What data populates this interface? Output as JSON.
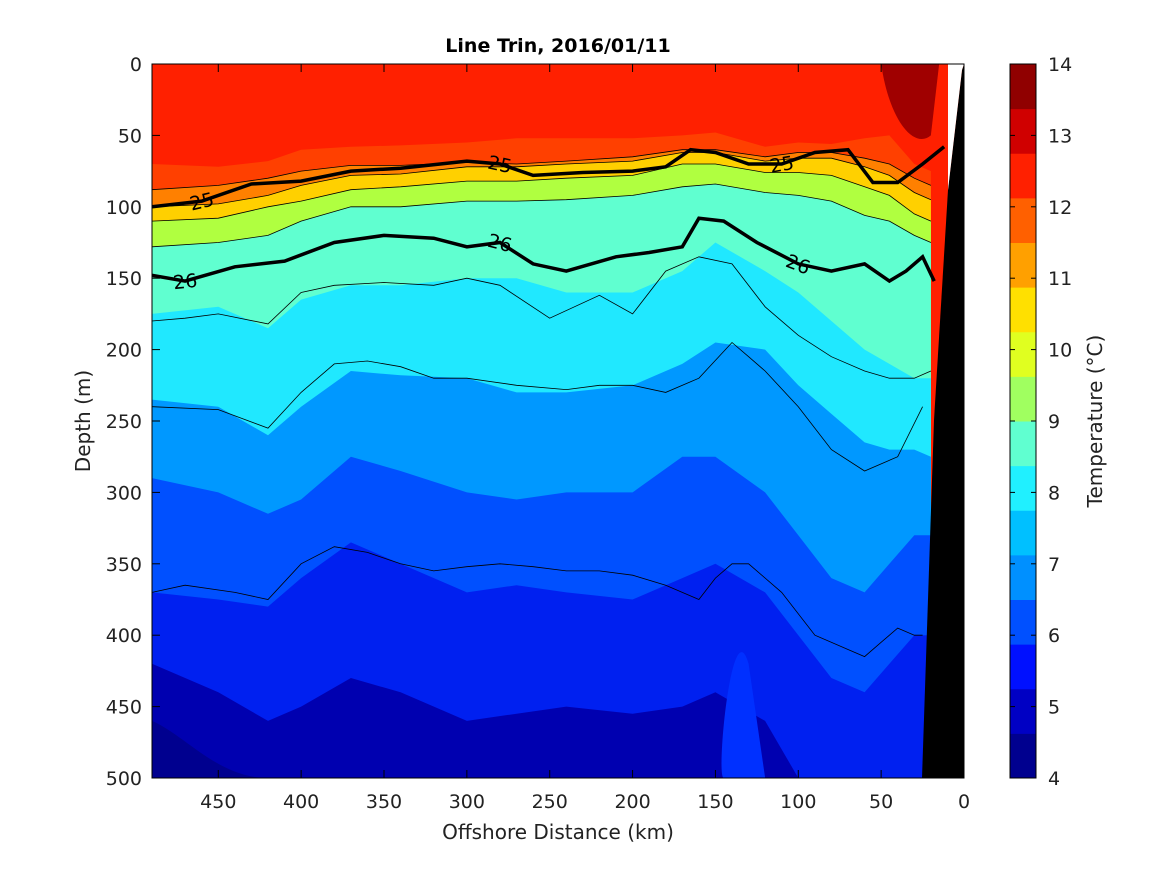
{
  "chart_data": {
    "type": "heatmap",
    "title": "Line Trin, 2016/01/11",
    "xlabel": "Offshore Distance (km)",
    "ylabel": "Depth (m)",
    "colorbar_label": "Temperature (°C)",
    "x_range": [
      490,
      0
    ],
    "y_range": [
      0,
      500
    ],
    "x_ticks": [
      450,
      400,
      350,
      300,
      250,
      200,
      150,
      100,
      50,
      0
    ],
    "y_ticks": [
      0,
      50,
      100,
      150,
      200,
      250,
      300,
      350,
      400,
      450,
      500
    ],
    "colorbar_range": [
      4,
      14
    ],
    "colorbar_ticks": [
      4,
      5,
      6,
      7,
      8,
      9,
      10,
      11,
      12,
      13,
      14
    ],
    "colorbar_levels": [
      "#00008f",
      "#0000c4",
      "#0010ff",
      "#0050ff",
      "#0090ff",
      "#00c0ff",
      "#20f0ff",
      "#60ffd0",
      "#a0ff60",
      "#e0ff20",
      "#ffe000",
      "#ffa000",
      "#ff6000",
      "#ff2000",
      "#d00000",
      "#900000"
    ],
    "isotherm_depths": {
      "x": [
        490,
        450,
        420,
        400,
        370,
        340,
        300,
        270,
        240,
        200,
        170,
        150,
        120,
        100,
        80,
        60,
        45,
        30,
        20
      ],
      "t12p5": [
        70,
        72,
        68,
        60,
        58,
        57,
        55,
        52,
        52,
        52,
        50,
        48,
        58,
        55,
        56,
        52,
        50,
        70,
        75
      ],
      "t12": [
        88,
        85,
        80,
        75,
        71,
        71,
        69,
        70,
        68,
        65,
        60,
        60,
        65,
        62,
        62,
        66,
        70,
        80,
        85
      ],
      "t11": [
        100,
        98,
        92,
        85,
        78,
        77,
        72,
        72,
        70,
        68,
        62,
        62,
        68,
        66,
        66,
        72,
        78,
        90,
        95
      ],
      "t10": [
        110,
        108,
        100,
        96,
        88,
        86,
        82,
        82,
        80,
        78,
        70,
        70,
        76,
        76,
        78,
        86,
        92,
        105,
        110
      ],
      "t9": [
        128,
        125,
        120,
        110,
        100,
        100,
        96,
        96,
        95,
        92,
        86,
        84,
        90,
        92,
        96,
        106,
        110,
        120,
        125
      ],
      "t8": [
        175,
        170,
        185,
        165,
        155,
        155,
        150,
        150,
        160,
        160,
        145,
        125,
        145,
        160,
        180,
        200,
        210,
        220,
        220
      ],
      "t7": [
        235,
        240,
        260,
        240,
        215,
        218,
        220,
        230,
        230,
        225,
        210,
        195,
        200,
        225,
        245,
        265,
        270,
        270,
        275
      ],
      "t6": [
        290,
        300,
        315,
        305,
        275,
        285,
        300,
        305,
        300,
        300,
        275,
        275,
        300,
        330,
        360,
        370,
        350,
        330,
        330
      ],
      "t5": [
        370,
        375,
        380,
        360,
        335,
        350,
        370,
        365,
        370,
        375,
        360,
        350,
        370,
        400,
        430,
        440,
        420,
        400,
        400
      ],
      "t4p5": [
        420,
        440,
        460,
        450,
        430,
        440,
        460,
        455,
        450,
        455,
        450,
        440,
        460,
        500,
        520,
        520,
        520,
        520,
        520
      ]
    },
    "isopycnals": [
      {
        "label": "25",
        "x": [
          490,
          460,
          430,
          400,
          370,
          340,
          300,
          280,
          260,
          230,
          200,
          180,
          165,
          150,
          130,
          110,
          90,
          70,
          55,
          40,
          25,
          12
        ],
        "y": [
          100,
          96,
          84,
          82,
          75,
          73,
          68,
          70,
          78,
          76,
          75,
          72,
          60,
          62,
          70,
          70,
          62,
          60,
          83,
          83,
          70,
          58
        ],
        "labels_at": [
          450,
          285,
          115
        ]
      },
      {
        "label": "26",
        "x": [
          490,
          470,
          440,
          410,
          380,
          350,
          320,
          300,
          280,
          260,
          240,
          210,
          190,
          170,
          160,
          145,
          125,
          100,
          80,
          60,
          45,
          35,
          25,
          18
        ],
        "y": [
          148,
          152,
          142,
          138,
          125,
          120,
          122,
          128,
          125,
          140,
          145,
          135,
          132,
          128,
          108,
          110,
          125,
          140,
          145,
          140,
          152,
          145,
          135,
          152
        ],
        "labels_at": [
          460,
          270,
          110
        ]
      }
    ],
    "contours_thin": [
      {
        "x": [
          490,
          470,
          450,
          420,
          400,
          380,
          350,
          320,
          300,
          280,
          250,
          220,
          200,
          180,
          160,
          140,
          120,
          100,
          80,
          60,
          45,
          30,
          20
        ],
        "y": [
          180,
          178,
          175,
          182,
          160,
          155,
          153,
          155,
          150,
          155,
          178,
          162,
          175,
          145,
          135,
          140,
          170,
          190,
          205,
          215,
          220,
          220,
          215
        ]
      },
      {
        "x": [
          490,
          450,
          420,
          400,
          380,
          360,
          340,
          320,
          300,
          270,
          240,
          220,
          200,
          180,
          160,
          140,
          130,
          120,
          100,
          80,
          60,
          40,
          25
        ],
        "y": [
          240,
          242,
          255,
          230,
          210,
          208,
          212,
          220,
          220,
          225,
          228,
          225,
          225,
          230,
          220,
          195,
          205,
          215,
          240,
          270,
          285,
          275,
          240
        ]
      },
      {
        "x": [
          490,
          470,
          440,
          420,
          400,
          380,
          360,
          340,
          320,
          300,
          280,
          260,
          240,
          220,
          200,
          180,
          160,
          150,
          140,
          130,
          110,
          90,
          70,
          60,
          50,
          40,
          30,
          25
        ],
        "y": [
          370,
          365,
          370,
          375,
          350,
          338,
          342,
          350,
          355,
          352,
          350,
          352,
          355,
          355,
          358,
          365,
          375,
          360,
          350,
          350,
          370,
          400,
          410,
          415,
          405,
          395,
          400,
          400
        ]
      }
    ]
  }
}
